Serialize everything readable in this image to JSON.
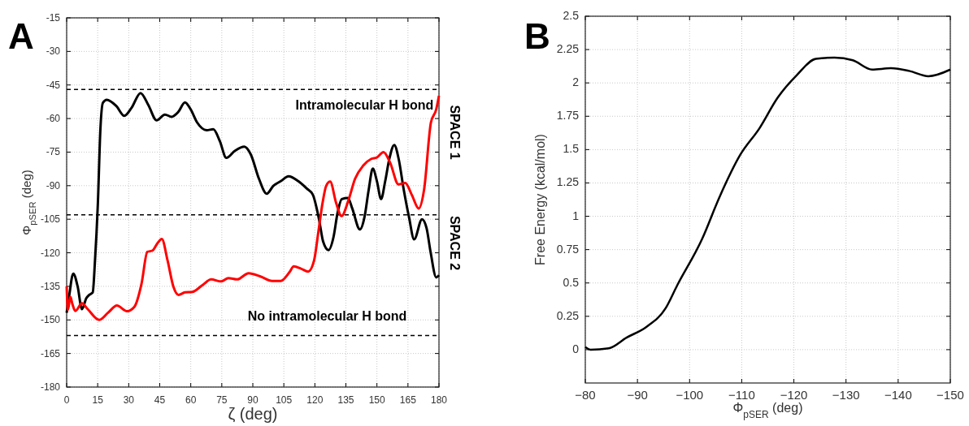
{
  "chart_data": [
    {
      "type": "line",
      "title": "A",
      "xlabel": "ζ (deg)",
      "ylabel": "Φ$_{pSER}$ (deg)",
      "xlim": [
        0,
        180
      ],
      "xticks": [
        0,
        15,
        30,
        45,
        60,
        75,
        90,
        105,
        120,
        135,
        150,
        165,
        180
      ],
      "ylim": [
        -180,
        -15
      ],
      "yticks": [
        -180,
        -165,
        -150,
        -135,
        -120,
        -105,
        -90,
        -75,
        -60,
        -45,
        -30,
        -15
      ],
      "grid": true,
      "line_style": "solid",
      "series": [
        {
          "color": "#000000",
          "x": [
            0,
            1.1,
            3.2,
            5.3,
            7.4,
            9.5,
            10.9,
            12.6,
            13.7,
            15.1,
            16.3,
            17.5,
            19.4,
            24,
            27.9,
            31.5,
            35.7,
            39.5,
            43.5,
            47.5,
            50.7,
            54,
            57.2,
            60,
            63.1,
            67.7,
            70.9,
            74,
            77.2,
            81.4,
            85.9,
            89,
            93,
            96.7,
            100,
            103.5,
            107.3,
            112,
            116,
            119,
            122,
            124,
            126.6,
            129,
            131,
            133,
            136,
            138,
            141.8,
            144,
            146,
            148,
            150,
            152,
            154,
            156,
            158.4,
            160.5,
            163,
            165.5,
            168,
            171.8,
            174,
            176,
            178.7,
            180
          ],
          "values": [
            -146.8,
            -140,
            -129.3,
            -135,
            -145.2,
            -140.3,
            -138.8,
            -137.7,
            -123.5,
            -97.6,
            -65,
            -53,
            -51.6,
            -54.4,
            -58.8,
            -55,
            -48.6,
            -54,
            -60.8,
            -58.2,
            -59.2,
            -57,
            -52.8,
            -56,
            -61.8,
            -65.2,
            -64.8,
            -70,
            -77.6,
            -74.4,
            -72.6,
            -76,
            -87,
            -93.6,
            -90,
            -88,
            -85.8,
            -88,
            -91.2,
            -94,
            -105,
            -115,
            -118.8,
            -113,
            -102,
            -96,
            -95.5,
            -100,
            -109.6,
            -104,
            -92,
            -82.4,
            -88,
            -96,
            -88,
            -78,
            -71.8,
            -78,
            -92,
            -104,
            -114,
            -105,
            -109,
            -120,
            -131,
            -130
          ]
        },
        {
          "color": "#ff0000",
          "x": [
            0,
            0.6,
            1.8,
            2.8,
            4.2,
            7.4,
            10.2,
            15.8,
            20,
            24.3,
            29.2,
            32.7,
            36.2,
            39,
            41.5,
            43.9,
            46,
            48.8,
            51.6,
            54.1,
            57.2,
            60.7,
            65.6,
            69.8,
            74.7,
            78.2,
            82.4,
            88,
            93.7,
            99.3,
            103.5,
            107.7,
            109.8,
            113.3,
            116.8,
            119.6,
            121.7,
            123.7,
            125.5,
            127.4,
            130.3,
            132.9,
            136.2,
            139.4,
            143.4,
            147.3,
            149.9,
            153.2,
            156.4,
            160.4,
            163.7,
            166.9,
            170.2,
            172.8,
            176.1,
            178.7,
            180
          ],
          "values": [
            -135,
            -145.5,
            -139.7,
            -143,
            -146,
            -142.6,
            -145.2,
            -150,
            -146.8,
            -143.6,
            -146.1,
            -144.2,
            -133.8,
            -119.6,
            -119,
            -115.7,
            -113.8,
            -123.5,
            -135.1,
            -138.8,
            -137.7,
            -137.5,
            -134.5,
            -131.9,
            -132.8,
            -131.3,
            -131.9,
            -129.1,
            -130.6,
            -132.6,
            -132.6,
            -128.7,
            -126.1,
            -127.1,
            -128.4,
            -123.5,
            -110.6,
            -97.8,
            -90,
            -88.2,
            -97.8,
            -103.6,
            -96.6,
            -87,
            -81,
            -78,
            -77.4,
            -75,
            -79.8,
            -89.4,
            -88.8,
            -94.2,
            -100.2,
            -91.8,
            -61.8,
            -55.8,
            -49.8
          ]
        }
      ],
      "ref_lines": [
        {
          "axis": "y",
          "value": -47,
          "color": "#000000",
          "line_style": "dashed"
        },
        {
          "axis": "y",
          "value": -103,
          "color": "#000000",
          "line_style": "dashed"
        },
        {
          "axis": "y",
          "value": -157,
          "color": "#000000",
          "line_style": "dashed"
        }
      ],
      "annotations": [
        "Intramolecular H bond",
        "No intramolecular H bond",
        "SPACE 1",
        "SPACE 2"
      ]
    },
    {
      "type": "line",
      "title": "B",
      "xlabel": "Φ$_{pSER}$ (deg)",
      "ylabel": "Free Energy (kcal/mol)",
      "xlim": [
        -80,
        -150
      ],
      "xticks": [
        {
          "value": -80,
          "label": "−80"
        },
        {
          "value": -90,
          "label": "−90"
        },
        {
          "value": -100,
          "label": "−100"
        },
        {
          "value": -110,
          "label": "−110"
        },
        {
          "value": -120,
          "label": "−120"
        },
        {
          "value": -130,
          "label": "−130"
        },
        {
          "value": -140,
          "label": "−140"
        },
        {
          "value": -150,
          "label": "−150"
        }
      ],
      "ylim": [
        -0.25,
        2.5
      ],
      "yticks": [
        0,
        0.25,
        0.5,
        0.75,
        1,
        1.25,
        1.5,
        1.75,
        2,
        2.25,
        2.5
      ],
      "grid": true,
      "line_style": "solid",
      "series": [
        {
          "color": "#000000",
          "x": [
            -80,
            -81,
            -84.5,
            -87.9,
            -91.7,
            -95.4,
            -97.6,
            -102.4,
            -105.8,
            -109.7,
            -113.4,
            -116.9,
            -120.6,
            -124.2,
            -127.8,
            -131.3,
            -135,
            -138.6,
            -142.1,
            -145.8,
            -150
          ],
          "values": [
            0.02,
            0,
            0.01,
            0.09,
            0.17,
            0.31,
            0.48,
            0.83,
            1.15,
            1.46,
            1.66,
            1.89,
            2.06,
            2.18,
            2.19,
            2.17,
            2.1,
            2.11,
            2.09,
            2.05,
            2.1
          ]
        }
      ]
    }
  ]
}
